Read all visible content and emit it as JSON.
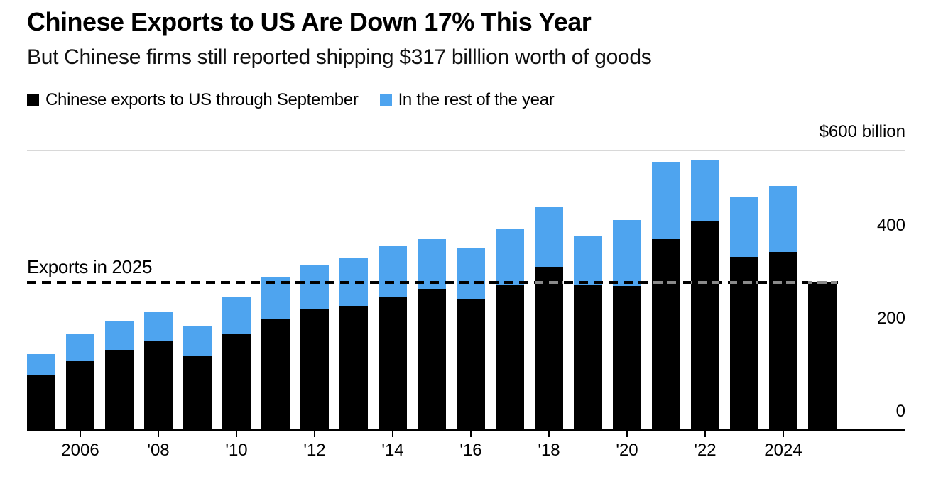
{
  "header": {
    "title": "Chinese Exports to US Are Down 17% This Year",
    "subtitle": "But Chinese firms still reported shipping $317 billlion worth of goods"
  },
  "legend": {
    "items": [
      {
        "name": "through-september",
        "label": "Chinese exports to US through September",
        "color": "#000000"
      },
      {
        "name": "rest-of-year",
        "label": "In the rest of the year",
        "color": "#4EA4EF"
      }
    ]
  },
  "annotation": {
    "label": "Exports in 2025",
    "value": 317
  },
  "colors": {
    "black_series": "#000000",
    "blue_series": "#4EA4EF",
    "gridline": "#d8d8d8",
    "dash_on_white": "#000000",
    "dash_on_black": "#8a8a8a",
    "background": "#ffffff"
  },
  "chart_data": {
    "type": "bar",
    "stacked": true,
    "title": "Chinese Exports to US Are Down 17% This Year",
    "subtitle": "But Chinese firms still reported shipping $317 billlion worth of goods",
    "unit": "$ billions",
    "categories": [
      2005,
      2006,
      2007,
      2008,
      2009,
      2010,
      2011,
      2012,
      2013,
      2014,
      2015,
      2016,
      2017,
      2018,
      2019,
      2020,
      2021,
      2022,
      2023,
      2024,
      2025
    ],
    "series": [
      {
        "name": "Chinese exports to US through September",
        "color": "#000000",
        "values": [
          116,
          145,
          170,
          188,
          157,
          203,
          235,
          258,
          265,
          285,
          302,
          278,
          310,
          348,
          311,
          308,
          409,
          447,
          370,
          381,
          317
        ]
      },
      {
        "name": "In the rest of the year",
        "color": "#4EA4EF",
        "values": [
          45,
          58,
          62,
          64,
          63,
          80,
          90,
          94,
          103,
          110,
          107,
          110,
          120,
          130,
          106,
          143,
          167,
          133,
          130,
          143,
          0
        ]
      }
    ],
    "reference_line": {
      "label": "Exports in 2025",
      "value": 317,
      "style": "dashed"
    },
    "y_axis": {
      "range": [
        0,
        600
      ],
      "ticks": [
        600,
        400,
        200,
        0
      ],
      "tick_labels": [
        "$600 billion",
        "400",
        "200",
        "0"
      ],
      "side": "right",
      "grid": true
    },
    "x_axis": {
      "tick_years": [
        2006,
        2008,
        2010,
        2012,
        2014,
        2016,
        2018,
        2020,
        2022,
        2024
      ],
      "tick_labels": [
        "2006",
        "'08",
        "'10",
        "'12",
        "'14",
        "'16",
        "'18",
        "'20",
        "'22",
        "2024"
      ]
    },
    "legend_position": "top"
  }
}
